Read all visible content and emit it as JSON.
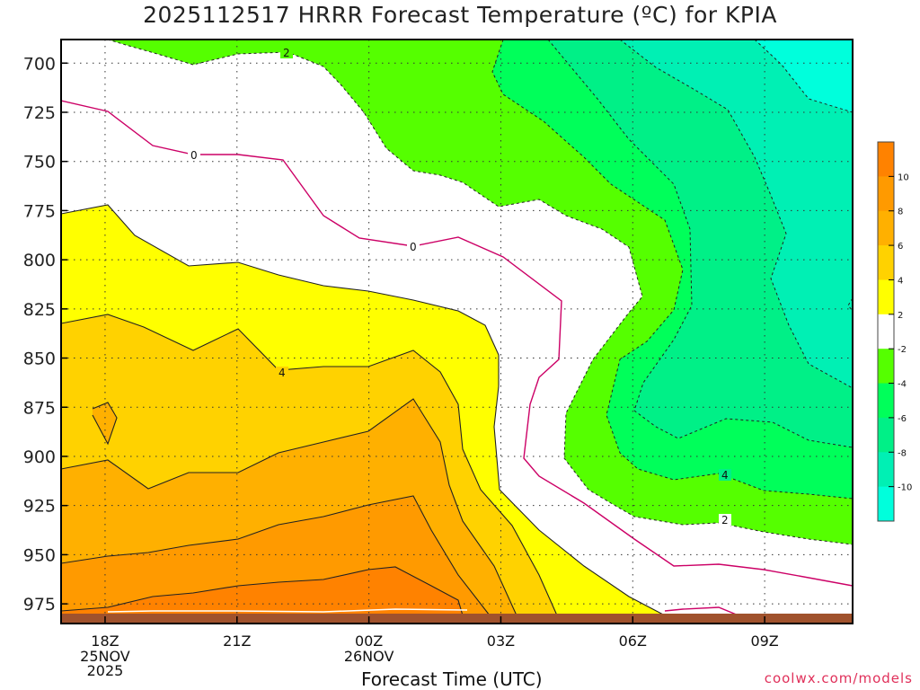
{
  "page_title": "2025112517 HRRR Forecast Temperature (ºC) for KPIA",
  "footer_credit": "coolwx.com/models",
  "chart_data": {
    "type": "contour",
    "title": "2025112517 HRRR Forecast Temperature (ºC) for KPIA",
    "xlabel": "Forecast Time (UTC)",
    "ylabel": "",
    "x_ticks": [
      {
        "label": "18Z",
        "sub": [
          "25NOV",
          "2025"
        ]
      },
      {
        "label": "21Z",
        "sub": []
      },
      {
        "label": "00Z",
        "sub": [
          "26NOV"
        ]
      },
      {
        "label": "03Z",
        "sub": []
      },
      {
        "label": "06Z",
        "sub": []
      },
      {
        "label": "09Z",
        "sub": []
      }
    ],
    "y_ticks": [
      "700",
      "725",
      "750",
      "775",
      "800",
      "825",
      "850",
      "875",
      "900",
      "925",
      "950",
      "975"
    ],
    "y_range_hpa": [
      688,
      985
    ],
    "x_range_hours_from_18Z": [
      -1.0,
      17.0
    ],
    "colorbar": {
      "ticks": [
        "10",
        "8",
        "6",
        "4",
        "2",
        "-2",
        "-4",
        "-6",
        "-8",
        "-10"
      ],
      "bands": [
        {
          "range": [
            10,
            12
          ],
          "color": "#ff8200"
        },
        {
          "range": [
            8,
            10
          ],
          "color": "#ff9a00"
        },
        {
          "range": [
            6,
            8
          ],
          "color": "#ffb000"
        },
        {
          "range": [
            4,
            6
          ],
          "color": "#ffd200"
        },
        {
          "range": [
            2,
            4
          ],
          "color": "#ffff00"
        },
        {
          "range": [
            -2,
            2
          ],
          "color": "#ffffff"
        },
        {
          "range": [
            -4,
            -2
          ],
          "color": "#55ff00"
        },
        {
          "range": [
            -6,
            -4
          ],
          "color": "#00ff5a"
        },
        {
          "range": [
            -8,
            -6
          ],
          "color": "#00f087"
        },
        {
          "range": [
            -10,
            -8
          ],
          "color": "#00f0b4"
        },
        {
          "range": [
            -12,
            -10
          ],
          "color": "#00ffdc"
        }
      ]
    },
    "contour_labels": [
      "2",
      "0",
      "0",
      "4",
      "4",
      "2"
    ],
    "ground_color": "#a0522d"
  }
}
